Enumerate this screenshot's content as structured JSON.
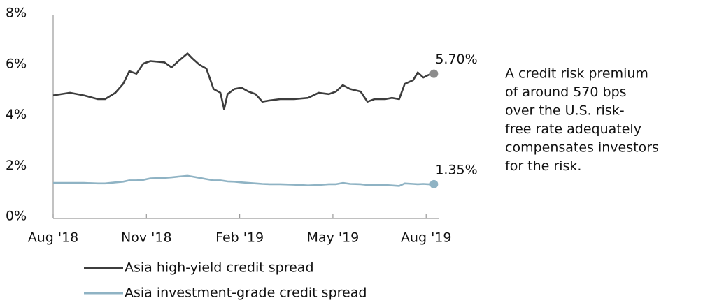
{
  "chart_data": {
    "type": "line",
    "x": [
      0,
      0.54,
      0.99,
      1.44,
      1.67,
      2.0,
      2.25,
      2.45,
      2.68,
      2.9,
      3.13,
      3.58,
      3.81,
      4.03,
      4.32,
      4.48,
      4.71,
      4.93,
      5.16,
      5.38,
      5.5,
      5.61,
      5.83,
      6.06,
      6.28,
      6.51,
      6.73,
      6.96,
      7.3,
      7.75,
      8.2,
      8.54,
      8.87,
      9.1,
      9.32,
      9.55,
      9.89,
      10.11,
      10.34,
      10.68,
      10.9,
      11.13,
      11.31,
      11.58,
      11.73,
      11.91,
      12.07,
      12.25
    ],
    "series": [
      {
        "name": "Asia high-yield credit spread",
        "color": "#3d3d3d",
        "marker_color": "#8c8c8c",
        "end_label": "5.70%",
        "values": [
          4.85,
          4.95,
          4.85,
          4.7,
          4.7,
          4.95,
          5.3,
          5.8,
          5.7,
          6.1,
          6.2,
          6.15,
          5.95,
          6.2,
          6.5,
          6.3,
          6.05,
          5.9,
          5.1,
          4.95,
          4.3,
          4.9,
          5.1,
          5.15,
          5.0,
          4.9,
          4.6,
          4.65,
          4.7,
          4.7,
          4.75,
          4.95,
          4.9,
          5.0,
          5.25,
          5.1,
          5.0,
          4.6,
          4.7,
          4.7,
          4.75,
          4.7,
          5.3,
          5.45,
          5.75,
          5.55,
          5.65,
          5.7
        ]
      },
      {
        "name": "Asia investment-grade credit spread",
        "color": "#8fb3c4",
        "marker_color": "#8fb3c4",
        "end_label": "1.35%",
        "values": [
          1.4,
          1.4,
          1.4,
          1.38,
          1.38,
          1.42,
          1.45,
          1.5,
          1.5,
          1.52,
          1.58,
          1.6,
          1.62,
          1.65,
          1.68,
          1.65,
          1.6,
          1.55,
          1.5,
          1.5,
          1.48,
          1.46,
          1.45,
          1.42,
          1.4,
          1.38,
          1.36,
          1.35,
          1.35,
          1.33,
          1.3,
          1.32,
          1.35,
          1.35,
          1.4,
          1.36,
          1.35,
          1.32,
          1.33,
          1.32,
          1.3,
          1.28,
          1.38,
          1.36,
          1.35,
          1.36,
          1.35,
          1.35
        ]
      }
    ],
    "xlim": [
      0,
      12.4
    ],
    "xticks": [
      {
        "value": 0,
        "label": "Aug '18"
      },
      {
        "value": 3,
        "label": "Nov '18"
      },
      {
        "value": 6,
        "label": "Feb '19"
      },
      {
        "value": 9,
        "label": "May '19"
      },
      {
        "value": 12,
        "label": "Aug '19"
      }
    ],
    "ylim": [
      0,
      8
    ],
    "yticks": [
      {
        "value": 0,
        "label": "0%"
      },
      {
        "value": 2,
        "label": "2%"
      },
      {
        "value": 4,
        "label": "4%"
      },
      {
        "value": 6,
        "label": "6%"
      },
      {
        "value": 8,
        "label": "8%"
      }
    ],
    "annotation": [
      "A credit risk premium",
      "of around 570 bps",
      "over the U.S. risk-",
      "free rate adequately",
      "compensates investors",
      "for the risk."
    ]
  }
}
